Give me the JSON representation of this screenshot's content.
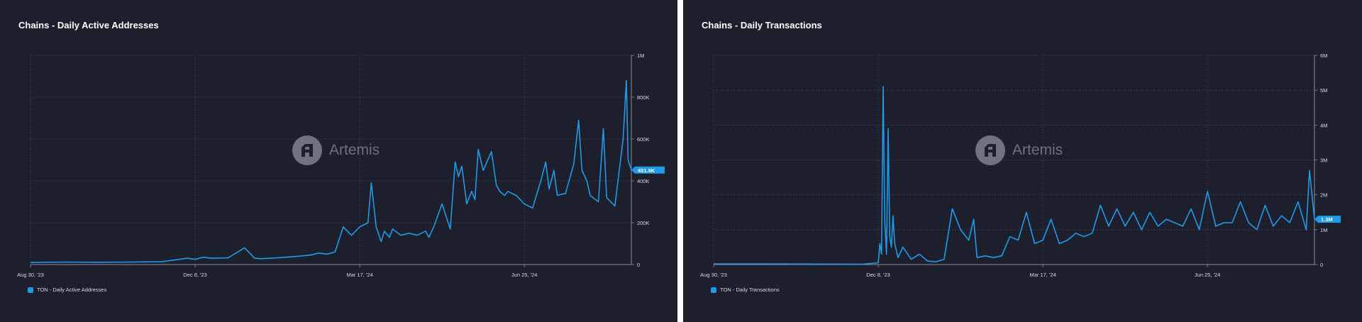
{
  "colors": {
    "background": "#1d1f2d",
    "separator": "#ffffff",
    "line": "#1e9be8",
    "grid": "#3a3d4d",
    "axis_text": "#d7d9e3",
    "watermark": "#6e707c"
  },
  "watermark": {
    "text": "Artemis",
    "icon": "artemis-logo-icon"
  },
  "chart_data": [
    {
      "type": "line",
      "title": "Chains - Daily Active Addresses",
      "x_ticks": [
        "Aug 30, '23",
        "Dec 8, '23",
        "Mar 17, '24",
        "Jun 25, '24"
      ],
      "y_ticks": [
        "0",
        "200K",
        "400K",
        "600K",
        "800K",
        "1M"
      ],
      "ylim": [
        0,
        1000000
      ],
      "x_range_days": [
        0,
        365
      ],
      "last_value_label": "451.5K",
      "legend": "TON - Daily Active Addresses",
      "series": [
        {
          "name": "TON - Daily Active Addresses",
          "x": [
            0,
            20,
            40,
            60,
            80,
            95,
            100,
            105,
            110,
            120,
            130,
            135,
            136,
            140,
            150,
            160,
            170,
            175,
            180,
            185,
            190,
            195,
            200,
            205,
            207,
            210,
            213,
            215,
            218,
            220,
            225,
            230,
            235,
            240,
            242,
            245,
            250,
            255,
            258,
            260,
            262,
            265,
            268,
            270,
            272,
            275,
            280,
            283,
            285,
            288,
            290,
            295,
            300,
            305,
            310,
            313,
            315,
            318,
            320,
            325,
            330,
            333,
            335,
            338,
            340,
            345,
            348,
            350,
            355,
            360,
            362,
            363,
            365
          ],
          "values": [
            10000,
            12000,
            11000,
            12000,
            14000,
            30000,
            25000,
            35000,
            30000,
            32000,
            80000,
            40000,
            30000,
            28000,
            32000,
            38000,
            45000,
            55000,
            50000,
            60000,
            180000,
            140000,
            180000,
            200000,
            390000,
            180000,
            110000,
            160000,
            130000,
            170000,
            140000,
            150000,
            140000,
            160000,
            130000,
            180000,
            290000,
            170000,
            490000,
            420000,
            470000,
            290000,
            350000,
            310000,
            550000,
            450000,
            540000,
            380000,
            350000,
            330000,
            350000,
            330000,
            290000,
            270000,
            400000,
            490000,
            360000,
            450000,
            330000,
            340000,
            480000,
            690000,
            450000,
            400000,
            330000,
            300000,
            650000,
            320000,
            280000,
            600000,
            880000,
            500000,
            451500
          ]
        }
      ]
    },
    {
      "type": "line",
      "title": "Chains - Daily Transactions",
      "x_ticks": [
        "Aug 30, '23",
        "Dec 8, '23",
        "Mar 17, '24",
        "Jun 25, '24"
      ],
      "y_ticks": [
        "0",
        "1M",
        "2M",
        "3M",
        "4M",
        "5M",
        "6M"
      ],
      "ylim": [
        0,
        6000000
      ],
      "x_range_days": [
        0,
        365
      ],
      "last_value_label": "1.3M",
      "legend": "TON - Daily Transactions",
      "series": [
        {
          "name": "TON - Daily Transactions",
          "x": [
            0,
            30,
            60,
            90,
            100,
            101,
            102,
            103,
            104,
            105,
            106,
            107,
            108,
            109,
            110,
            112,
            115,
            120,
            125,
            130,
            135,
            140,
            145,
            150,
            155,
            158,
            160,
            165,
            170,
            175,
            180,
            185,
            190,
            195,
            200,
            205,
            210,
            215,
            220,
            225,
            230,
            235,
            240,
            245,
            250,
            255,
            260,
            265,
            270,
            275,
            280,
            285,
            290,
            295,
            300,
            305,
            310,
            315,
            320,
            325,
            330,
            335,
            340,
            345,
            350,
            355,
            360,
            362,
            365
          ],
          "values": [
            20000,
            20000,
            15000,
            10000,
            50000,
            600000,
            300000,
            5100000,
            1200000,
            300000,
            3900000,
            800000,
            500000,
            1400000,
            600000,
            200000,
            500000,
            150000,
            300000,
            100000,
            80000,
            150000,
            1600000,
            1000000,
            700000,
            1300000,
            200000,
            250000,
            200000,
            250000,
            800000,
            700000,
            1500000,
            600000,
            700000,
            1300000,
            600000,
            700000,
            900000,
            800000,
            900000,
            1700000,
            1100000,
            1600000,
            1100000,
            1500000,
            1000000,
            1500000,
            1100000,
            1300000,
            1200000,
            1100000,
            1600000,
            1000000,
            2100000,
            1100000,
            1200000,
            1200000,
            1800000,
            1200000,
            1000000,
            1700000,
            1100000,
            1400000,
            1200000,
            1800000,
            1000000,
            2700000,
            1300000
          ]
        }
      ]
    }
  ]
}
